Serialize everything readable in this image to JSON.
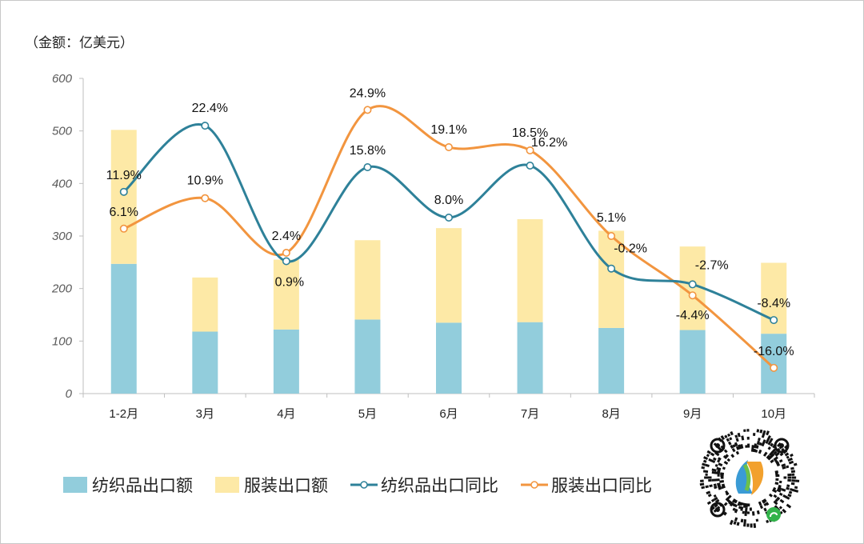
{
  "unit_label": "（金额：亿美元）",
  "colors": {
    "textile_bar": "#92cddc",
    "apparel_bar": "#fde9a6",
    "textile_line": "#2e8199",
    "apparel_line": "#f2953f",
    "axis": "#bfbfbf"
  },
  "legend": {
    "textile_bar": "纺织品出口额",
    "apparel_bar": "服装出口额",
    "textile_line": "纺织品出口同比",
    "apparel_line": "服装出口同比"
  },
  "chart_data": {
    "type": "bar",
    "stacked": true,
    "categories": [
      "1-2月",
      "3月",
      "4月",
      "5月",
      "6月",
      "7月",
      "8月",
      "9月",
      "10月"
    ],
    "ylim": [
      0,
      600
    ],
    "yticks": [
      0,
      100,
      200,
      300,
      400,
      500,
      600
    ],
    "series": [
      {
        "name": "纺织品出口额",
        "type": "bar",
        "values": [
          247,
          118,
          122,
          141,
          135,
          136,
          125,
          121,
          114
        ]
      },
      {
        "name": "服装出口额",
        "type": "bar",
        "values": [
          255,
          103,
          133,
          151,
          180,
          196,
          185,
          159,
          135
        ]
      },
      {
        "name": "纺织品出口同比",
        "type": "line",
        "labels": [
          "11.9%",
          "22.4%",
          "0.9%",
          "15.8%",
          "8.0%",
          "16.2%",
          "-0.2%",
          "-2.7%",
          "-8.4%"
        ],
        "plot_positions": [
          384,
          510,
          252,
          431,
          335,
          434,
          238,
          208,
          140
        ]
      },
      {
        "name": "服装出口同比",
        "type": "line",
        "labels": [
          "6.1%",
          "10.9%",
          "2.4%",
          "24.9%",
          "19.1%",
          "18.5%",
          "5.1%",
          "-4.4%",
          "-16.0%"
        ],
        "plot_positions": [
          314,
          372,
          268,
          540,
          469,
          463,
          300,
          187,
          49
        ]
      }
    ],
    "grid": false,
    "legend_position": "bottom"
  }
}
